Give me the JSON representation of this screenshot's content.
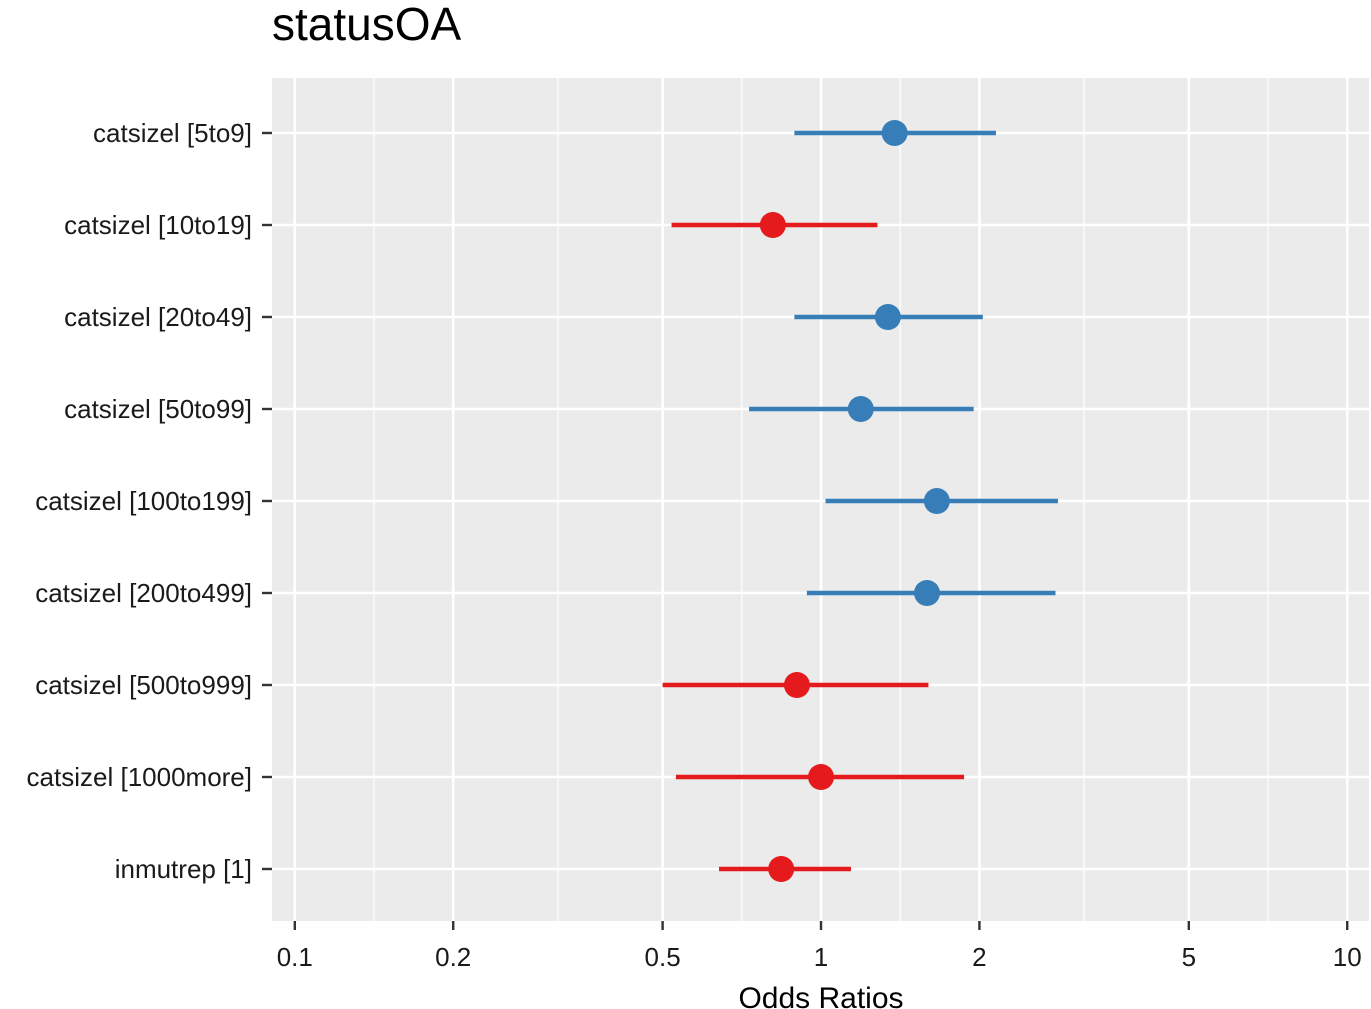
{
  "chart_data": {
    "type": "forest",
    "title": "statusOA",
    "xlabel": "Odds Ratios",
    "x_scale": "log10",
    "xlim": [
      0.0905,
      11.0
    ],
    "x_ticks": [
      {
        "value": 0.1,
        "label": "0.1"
      },
      {
        "value": 0.2,
        "label": "0.2"
      },
      {
        "value": 0.5,
        "label": "0.5"
      },
      {
        "value": 1,
        "label": "1"
      },
      {
        "value": 2,
        "label": "2"
      },
      {
        "value": 5,
        "label": "5"
      },
      {
        "value": 10,
        "label": "10"
      }
    ],
    "x_minor_ticks": [
      0.1414,
      0.3162,
      0.7071,
      1.4142,
      3.1623,
      7.0711
    ],
    "colors": {
      "positive": "#377eb8",
      "negative": "#e41a1c",
      "panel": "#ebebeb",
      "grid": "#ffffff",
      "tick": "#333333"
    },
    "terms": [
      {
        "label": "catsizel [5to9]",
        "estimate": 1.38,
        "ci_low": 0.89,
        "ci_high": 2.15,
        "direction": "positive"
      },
      {
        "label": "catsizel [10to19]",
        "estimate": 0.81,
        "ci_low": 0.52,
        "ci_high": 1.28,
        "direction": "negative"
      },
      {
        "label": "catsizel [20to49]",
        "estimate": 1.34,
        "ci_low": 0.89,
        "ci_high": 2.03,
        "direction": "positive"
      },
      {
        "label": "catsizel [50to99]",
        "estimate": 1.19,
        "ci_low": 0.73,
        "ci_high": 1.95,
        "direction": "positive"
      },
      {
        "label": "catsizel [100to199]",
        "estimate": 1.66,
        "ci_low": 1.02,
        "ci_high": 2.82,
        "direction": "positive"
      },
      {
        "label": "catsizel [200to499]",
        "estimate": 1.59,
        "ci_low": 0.94,
        "ci_high": 2.79,
        "direction": "positive"
      },
      {
        "label": "catsizel [500to999]",
        "estimate": 0.9,
        "ci_low": 0.5,
        "ci_high": 1.6,
        "direction": "negative"
      },
      {
        "label": "catsizel [1000more]",
        "estimate": 1.0,
        "ci_low": 0.53,
        "ci_high": 1.87,
        "direction": "negative"
      },
      {
        "label": "inmutrep [1]",
        "estimate": 0.84,
        "ci_low": 0.64,
        "ci_high": 1.14,
        "direction": "negative"
      }
    ]
  }
}
